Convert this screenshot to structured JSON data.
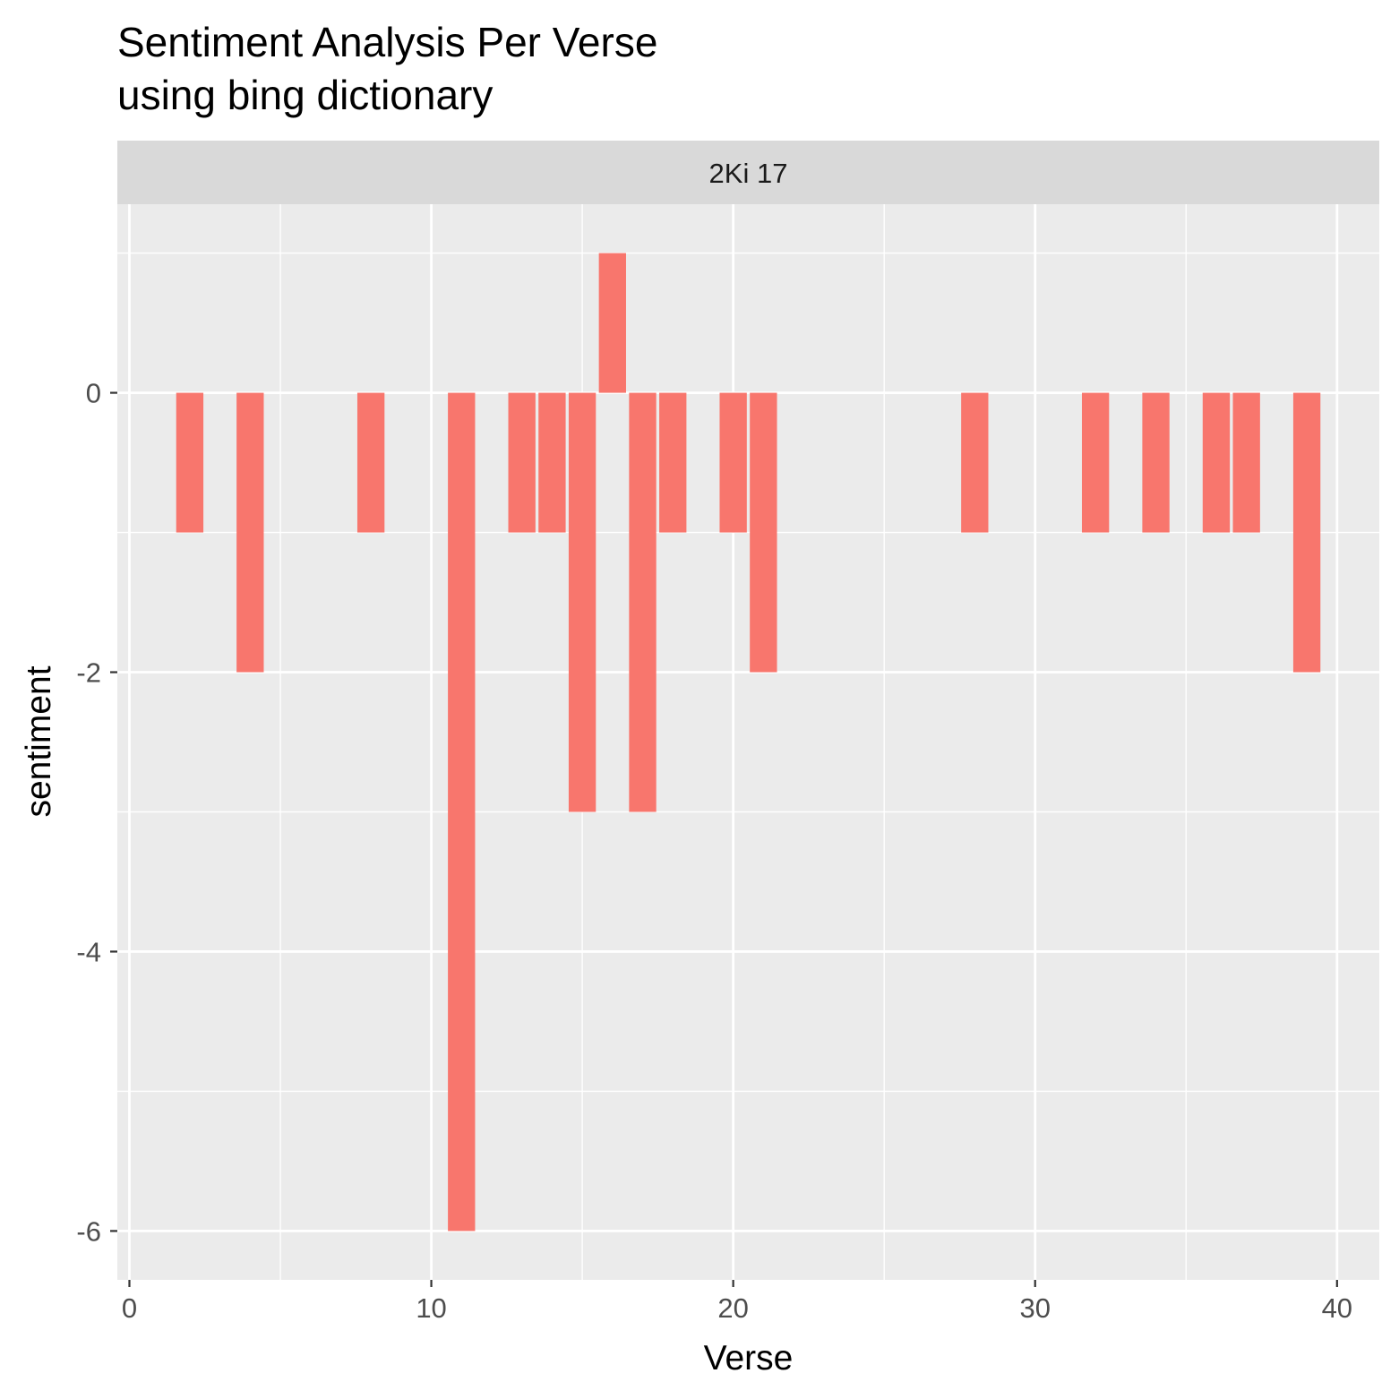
{
  "chart_data": {
    "type": "bar",
    "title": "Sentiment Analysis Per Verse",
    "subtitle": "using bing dictionary",
    "facet_label": "2Ki 17",
    "xlabel": "Verse",
    "ylabel": "sentiment",
    "xlim": [
      -0.4,
      41.4
    ],
    "ylim": [
      -6.35,
      1.35
    ],
    "x_ticks": [
      0,
      10,
      20,
      30,
      40
    ],
    "x_tick_labels": [
      "0",
      "10",
      "20",
      "30",
      "40"
    ],
    "y_ticks": [
      0,
      -2,
      -4,
      -6
    ],
    "y_tick_labels": [
      "0",
      "-2",
      "-4",
      "-6"
    ],
    "x_minor_grid": [
      5,
      15,
      25,
      35
    ],
    "y_minor_grid": [
      1,
      -1,
      -3,
      -5
    ],
    "grid": true,
    "legend": "none",
    "bar_color": "#F8766D",
    "panel_background": "#EBEBEB",
    "strip_background": "#D9D9D9",
    "grid_color": "#FFFFFF",
    "verses": [
      2,
      4,
      8,
      11,
      13,
      14,
      15,
      16,
      17,
      18,
      20,
      21,
      28,
      32,
      34,
      36,
      37,
      39
    ],
    "values": [
      -1,
      -2,
      -1,
      -6,
      -1,
      -1,
      -3,
      1,
      -3,
      -1,
      -1,
      -2,
      -1,
      -1,
      -1,
      -1,
      -1,
      -2
    ]
  }
}
